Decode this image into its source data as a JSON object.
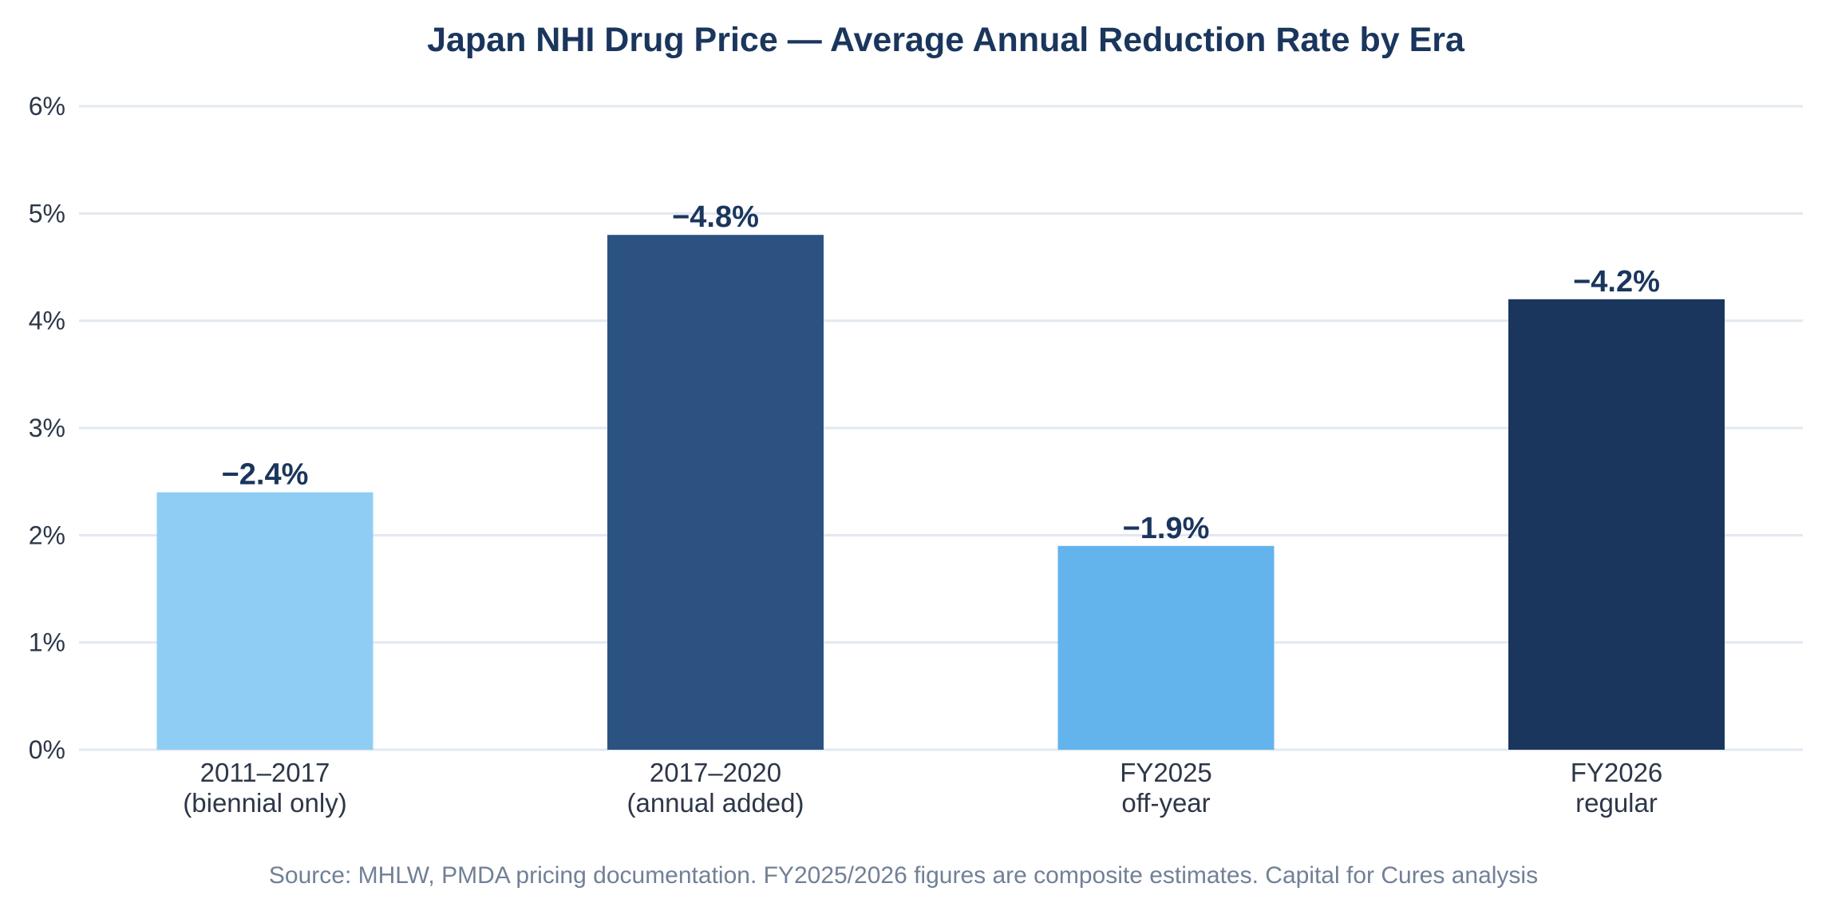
{
  "chart_data": {
    "type": "bar",
    "title": "Japan NHI Drug Price — Average Annual Reduction Rate by Era",
    "xlabel": "",
    "ylabel": "",
    "categories": [
      [
        "2011–2017",
        "(biennial only)"
      ],
      [
        "2017–2020",
        "(annual added)"
      ],
      [
        "FY2025",
        "off-year"
      ],
      [
        "FY2026",
        "regular"
      ]
    ],
    "values": [
      2.4,
      4.8,
      1.9,
      4.2
    ],
    "value_labels": [
      "−2.4%",
      "−4.8%",
      "−1.9%",
      "−4.2%"
    ],
    "colors": [
      "#90cdf4",
      "#2c5282",
      "#63b3ed",
      "#1a365d"
    ],
    "ylim": [
      0,
      6
    ],
    "yticks": [
      0,
      1,
      2,
      3,
      4,
      5,
      6
    ],
    "ytick_labels": [
      "0%",
      "1%",
      "2%",
      "3%",
      "4%",
      "5%",
      "6%"
    ],
    "grid": true,
    "legend": "none",
    "source": "Source: MHLW, PMDA pricing documentation. FY2025/2026 figures are composite estimates. Capital for Cures analysis"
  }
}
